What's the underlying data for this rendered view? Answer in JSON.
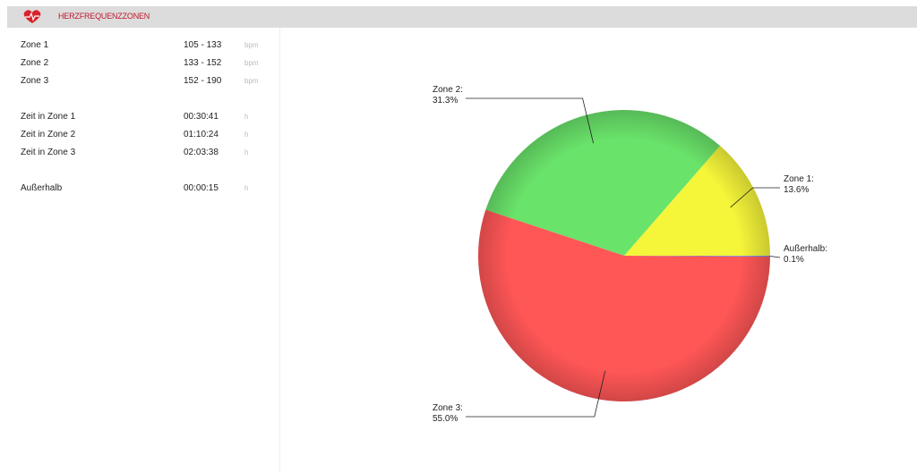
{
  "header": {
    "title": "HERZFREQUENZZONEN"
  },
  "stats": [
    {
      "rows": [
        {
          "label": "Zone 1",
          "value": "105 - 133",
          "unit": "bpm"
        },
        {
          "label": "Zone 2",
          "value": "133 - 152",
          "unit": "bpm"
        },
        {
          "label": "Zone 3",
          "value": "152 - 190",
          "unit": "bpm"
        }
      ]
    },
    {
      "rows": [
        {
          "label": "Zeit in Zone 1",
          "value": "00:30:41",
          "unit": "h"
        },
        {
          "label": "Zeit in Zone 2",
          "value": "01:10:24",
          "unit": "h"
        },
        {
          "label": "Zeit in Zone 3",
          "value": "02:03:38",
          "unit": "h"
        }
      ]
    },
    {
      "rows": [
        {
          "label": "Außerhalb",
          "value": "00:00:15",
          "unit": "h"
        }
      ]
    }
  ],
  "chart_data": {
    "type": "pie",
    "categories": [
      "Zone 1:",
      "Zone 2:",
      "Zone 3:",
      "Außerhalb:"
    ],
    "values": [
      13.6,
      31.3,
      55.0,
      0.1
    ],
    "value_labels": [
      "13.6%",
      "31.3%",
      "55.0%",
      "0.1%"
    ],
    "colors": [
      "#f5f53a",
      "#6ae36a",
      "#ff5656",
      "#5b8ff9"
    ]
  }
}
